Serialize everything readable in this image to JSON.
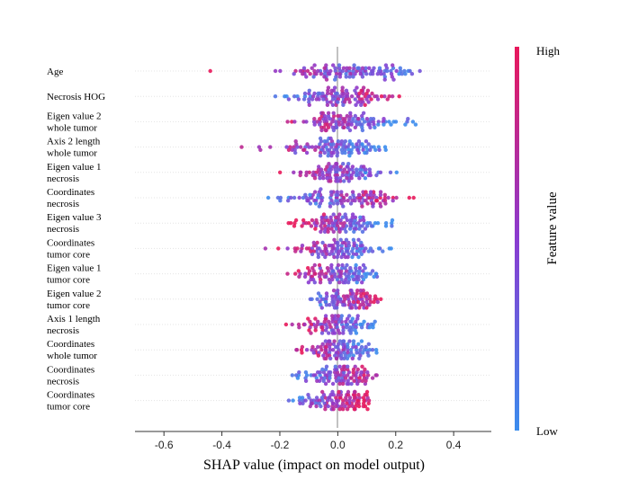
{
  "chart_data": {
    "type": "scatter",
    "subtype": "shap-beeswarm",
    "xlabel": "SHAP value (impact on model output)",
    "xlim": [
      -0.7,
      0.53
    ],
    "xticks": [
      -0.6,
      -0.4,
      -0.2,
      0.0,
      0.2,
      0.4
    ],
    "xtick_labels": [
      "-0.6",
      "-0.4",
      "-0.2",
      "0.0",
      "0.2",
      "0.4"
    ],
    "colorbar": {
      "title": "Feature value",
      "high_label": "High",
      "low_label": "Low",
      "high_color": "#e8185b",
      "low_color": "#3b8ced",
      "mid_color": "#8a3bd0"
    },
    "features": [
      {
        "label_lines": [
          "Age"
        ],
        "min": -0.63,
        "max": 0.47,
        "low_side": "right",
        "spread": 0.11,
        "center": 0.05
      },
      {
        "label_lines": [
          "Necrosis HOG"
        ],
        "min": -0.23,
        "max": 0.22,
        "low_side": "left",
        "spread": 0.08,
        "center": 0.0
      },
      {
        "label_lines": [
          "Eigen value 2",
          "whole tumor"
        ],
        "min": -0.21,
        "max": 0.27,
        "low_side": "right",
        "spread": 0.08,
        "center": 0.02
      },
      {
        "label_lines": [
          "Axis 2 length",
          "whole tumor"
        ],
        "min": -0.36,
        "max": 0.17,
        "low_side": "right",
        "spread": 0.08,
        "center": 0.0
      },
      {
        "label_lines": [
          "Eigen value 1",
          "necrosis"
        ],
        "min": -0.21,
        "max": 0.21,
        "low_side": "right",
        "spread": 0.07,
        "center": 0.0
      },
      {
        "label_lines": [
          "Coordinates",
          "necrosis"
        ],
        "min": -0.24,
        "max": 0.28,
        "low_side": "left",
        "spread": 0.09,
        "center": 0.03
      },
      {
        "label_lines": [
          "Eigen value 3",
          "necrosis"
        ],
        "min": -0.18,
        "max": 0.19,
        "low_side": "right",
        "spread": 0.07,
        "center": 0.0
      },
      {
        "label_lines": [
          "Coordinates",
          "tumor core"
        ],
        "min": -0.28,
        "max": 0.19,
        "low_side": "right",
        "spread": 0.07,
        "center": 0.0
      },
      {
        "label_lines": [
          "Eigen value 1",
          "tumor core"
        ],
        "min": -0.19,
        "max": 0.15,
        "low_side": "right",
        "spread": 0.07,
        "center": 0.0
      },
      {
        "label_lines": [
          "Eigen value 2",
          "tumor core"
        ],
        "min": -0.12,
        "max": 0.15,
        "low_side": "left",
        "spread": 0.06,
        "center": 0.02
      },
      {
        "label_lines": [
          "Axis 1 length",
          "necrosis"
        ],
        "min": -0.19,
        "max": 0.14,
        "low_side": "right",
        "spread": 0.06,
        "center": 0.0
      },
      {
        "label_lines": [
          "Coordinates",
          "whole tumor"
        ],
        "min": -0.16,
        "max": 0.14,
        "low_side": "right",
        "spread": 0.06,
        "center": 0.01
      },
      {
        "label_lines": [
          "Coordinates",
          "necrosis"
        ],
        "min": -0.17,
        "max": 0.18,
        "low_side": "left",
        "spread": 0.06,
        "center": 0.0
      },
      {
        "label_lines": [
          "Coordinates",
          "tumor core"
        ],
        "min": -0.21,
        "max": 0.11,
        "low_side": "left",
        "spread": 0.06,
        "center": 0.0
      }
    ]
  }
}
